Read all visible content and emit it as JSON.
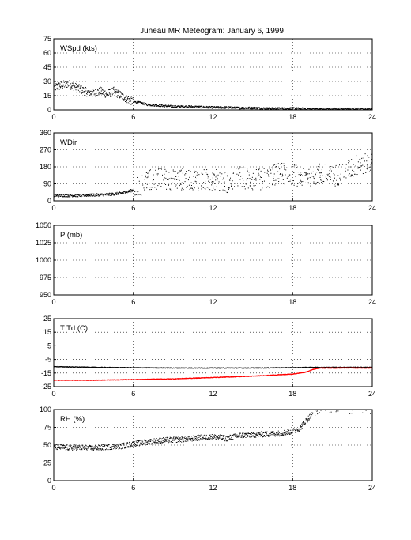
{
  "figure": {
    "title": "Juneau MR Meteogram:    January   6, 1999"
  },
  "chart_data": [
    {
      "type": "scatter",
      "label": "WSpd (kts)",
      "xlim": [
        0,
        24
      ],
      "ylim": [
        0,
        75
      ],
      "xticks": [
        0,
        6,
        12,
        18,
        24
      ],
      "yticks": [
        0,
        15,
        30,
        45,
        60,
        75
      ],
      "grid": true,
      "series": [
        {
          "color": "#000000",
          "points": [
            [
              0,
              24
            ],
            [
              0.5,
              26
            ],
            [
              1,
              28
            ],
            [
              1.5,
              25
            ],
            [
              2,
              22
            ],
            [
              2.5,
              19
            ],
            [
              3,
              18
            ],
            [
              3.5,
              20
            ],
            [
              4,
              17
            ],
            [
              4.5,
              20
            ],
            [
              5,
              16
            ],
            [
              5.5,
              12
            ],
            [
              6,
              9
            ],
            [
              6.5,
              8
            ],
            [
              7,
              6
            ],
            [
              8,
              5
            ],
            [
              9,
              4
            ],
            [
              10,
              4
            ],
            [
              11,
              3.5
            ],
            [
              12,
              3
            ],
            [
              13,
              3
            ],
            [
              14,
              2.5
            ],
            [
              15,
              2.5
            ],
            [
              16,
              2
            ],
            [
              17,
              2
            ],
            [
              18,
              2
            ],
            [
              19,
              1.5
            ],
            [
              20,
              1.5
            ],
            [
              21,
              1.5
            ],
            [
              22,
              1.5
            ],
            [
              23,
              1.5
            ],
            [
              24,
              1
            ]
          ]
        }
      ]
    },
    {
      "type": "scatter",
      "label": "WDir",
      "xlim": [
        0,
        24
      ],
      "ylim": [
        0,
        360
      ],
      "xticks": [
        0,
        6,
        12,
        18,
        24
      ],
      "yticks": [
        0,
        90,
        180,
        270,
        360
      ],
      "grid": true,
      "series": [
        {
          "color": "#000000",
          "points": [
            [
              0,
              30
            ],
            [
              1,
              30
            ],
            [
              2,
              30
            ],
            [
              3,
              33
            ],
            [
              4,
              35
            ],
            [
              4.5,
              38
            ],
            [
              5,
              42
            ],
            [
              5.5,
              50
            ],
            [
              6,
              60
            ],
            [
              6.5,
              80
            ],
            [
              7,
              110
            ],
            [
              8,
              120
            ],
            [
              9,
              110
            ],
            [
              10,
              120
            ],
            [
              11,
              110
            ],
            [
              12,
              115
            ],
            [
              13,
              100
            ],
            [
              14,
              130
            ],
            [
              15,
              110
            ],
            [
              16,
              120
            ],
            [
              17,
              150
            ],
            [
              18,
              140
            ],
            [
              19,
              130
            ],
            [
              20,
              150
            ],
            [
              21,
              130
            ],
            [
              22,
              160
            ],
            [
              23,
              200
            ],
            [
              24,
              200
            ]
          ]
        }
      ]
    },
    {
      "type": "scatter",
      "label": "P (mb)",
      "xlim": [
        0,
        24
      ],
      "ylim": [
        950,
        1050
      ],
      "xticks": [
        0,
        6,
        12,
        18,
        24
      ],
      "yticks": [
        950,
        975,
        1000,
        1025,
        1050
      ],
      "grid": true,
      "series": []
    },
    {
      "type": "line",
      "label": "T Td (C)",
      "xlim": [
        0,
        24
      ],
      "ylim": [
        -25,
        25
      ],
      "xticks": [
        0,
        6,
        12,
        18,
        24
      ],
      "yticks": [
        -25,
        -15,
        -5,
        5,
        15,
        25
      ],
      "grid": true,
      "series": [
        {
          "color": "#000000",
          "points": [
            [
              0,
              -10
            ],
            [
              3,
              -10.5
            ],
            [
              6,
              -10.8
            ],
            [
              9,
              -11
            ],
            [
              12,
              -11
            ],
            [
              15,
              -11
            ],
            [
              18,
              -10.8
            ],
            [
              19.5,
              -10.5
            ],
            [
              21,
              -10.5
            ],
            [
              24,
              -10.5
            ]
          ]
        },
        {
          "color": "#ff0000",
          "points": [
            [
              0,
              -20
            ],
            [
              3,
              -20
            ],
            [
              6,
              -19.5
            ],
            [
              9,
              -19
            ],
            [
              12,
              -18
            ],
            [
              15,
              -17
            ],
            [
              18,
              -15.5
            ],
            [
              19,
              -14
            ],
            [
              19.5,
              -12
            ],
            [
              20,
              -11
            ],
            [
              21,
              -11
            ],
            [
              24,
              -11
            ]
          ]
        }
      ]
    },
    {
      "type": "scatter",
      "label": "RH (%)",
      "xlim": [
        0,
        24
      ],
      "ylim": [
        0,
        100
      ],
      "xticks": [
        0,
        6,
        12,
        18,
        24
      ],
      "yticks": [
        0,
        25,
        50,
        75,
        100
      ],
      "grid": true,
      "series": [
        {
          "color": "#000000",
          "points": [
            [
              0,
              48
            ],
            [
              1,
              47
            ],
            [
              2,
              47
            ],
            [
              3,
              46
            ],
            [
              4,
              48
            ],
            [
              5,
              49
            ],
            [
              6,
              52
            ],
            [
              7,
              55
            ],
            [
              8,
              57
            ],
            [
              9,
              58
            ],
            [
              10,
              59
            ],
            [
              11,
              61
            ],
            [
              12,
              62
            ],
            [
              13,
              60
            ],
            [
              14,
              64
            ],
            [
              15,
              65
            ],
            [
              16,
              66
            ],
            [
              17,
              67
            ],
            [
              18,
              70
            ],
            [
              18.5,
              74
            ],
            [
              19,
              85
            ],
            [
              19.5,
              95
            ],
            [
              20,
              98
            ],
            [
              21,
              96
            ],
            [
              22,
              98
            ],
            [
              23,
              97
            ],
            [
              24,
              98
            ]
          ]
        }
      ]
    }
  ]
}
